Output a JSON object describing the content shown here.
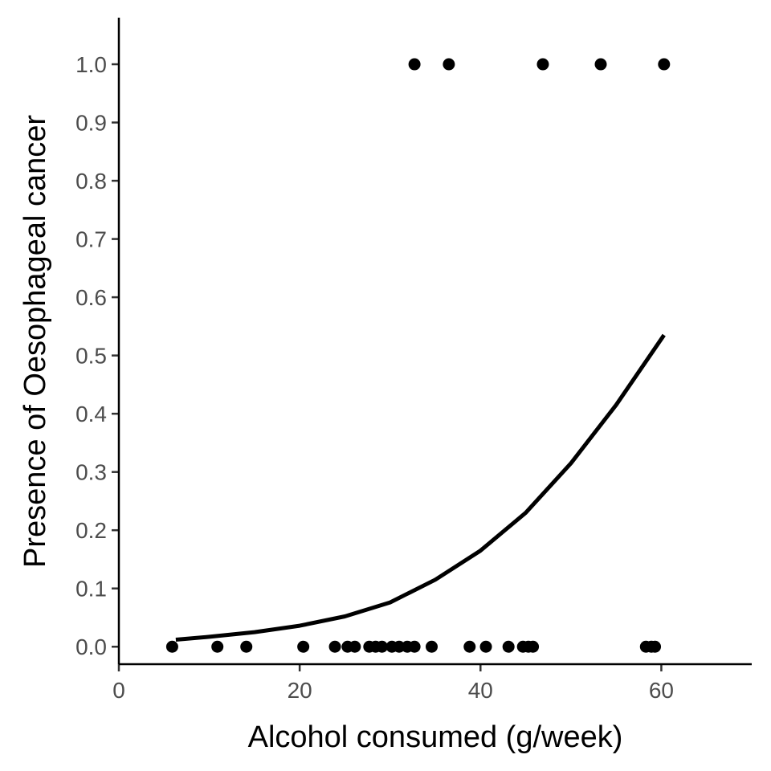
{
  "chart_data": {
    "type": "scatter",
    "title": "",
    "xlabel": "Alcohol consumed (g/week)",
    "ylabel": "Presence of Oesophageal cancer",
    "xlim": [
      0,
      70
    ],
    "ylim": [
      -0.03,
      1.08
    ],
    "x_ticks": [
      0,
      20,
      40,
      60
    ],
    "x_tick_labels": [
      "0",
      "20",
      "40",
      "60"
    ],
    "y_ticks": [
      0,
      0.1,
      0.2,
      0.3,
      0.4,
      0.5,
      0.6,
      0.7,
      0.8,
      0.9,
      1.0
    ],
    "y_tick_labels": [
      "0.0",
      "0.1",
      "0.2",
      "0.3",
      "0.4",
      "0.5",
      "0.6",
      "0.7",
      "0.8",
      "0.9",
      "1.0"
    ],
    "grid": false,
    "legend": "none",
    "point_color": "#000000",
    "line_color": "#000000",
    "points": [
      {
        "x": 5.9,
        "y": 0
      },
      {
        "x": 10.9,
        "y": 0
      },
      {
        "x": 14.1,
        "y": 0
      },
      {
        "x": 20.4,
        "y": 0
      },
      {
        "x": 23.9,
        "y": 0
      },
      {
        "x": 25.3,
        "y": 0
      },
      {
        "x": 26.1,
        "y": 0
      },
      {
        "x": 27.7,
        "y": 0
      },
      {
        "x": 28.4,
        "y": 0
      },
      {
        "x": 29.1,
        "y": 0
      },
      {
        "x": 30.2,
        "y": 0
      },
      {
        "x": 31.0,
        "y": 0
      },
      {
        "x": 31.9,
        "y": 0
      },
      {
        "x": 32.7,
        "y": 0
      },
      {
        "x": 34.6,
        "y": 0
      },
      {
        "x": 38.8,
        "y": 0
      },
      {
        "x": 40.6,
        "y": 0
      },
      {
        "x": 43.1,
        "y": 0
      },
      {
        "x": 44.7,
        "y": 0
      },
      {
        "x": 45.3,
        "y": 0
      },
      {
        "x": 45.8,
        "y": 0
      },
      {
        "x": 58.3,
        "y": 0
      },
      {
        "x": 58.9,
        "y": 0
      },
      {
        "x": 59.3,
        "y": 0
      },
      {
        "x": 32.7,
        "y": 1
      },
      {
        "x": 36.5,
        "y": 1
      },
      {
        "x": 46.9,
        "y": 1
      },
      {
        "x": 53.3,
        "y": 1
      },
      {
        "x": 60.3,
        "y": 1
      }
    ],
    "fit_line": {
      "type": "logistic",
      "x": [
        6.3,
        10,
        15,
        20,
        25,
        30,
        35,
        40,
        45,
        50,
        55,
        60.3
      ],
      "y": [
        0.012,
        0.017,
        0.025,
        0.036,
        0.052,
        0.076,
        0.115,
        0.165,
        0.23,
        0.315,
        0.415,
        0.535
      ]
    }
  }
}
